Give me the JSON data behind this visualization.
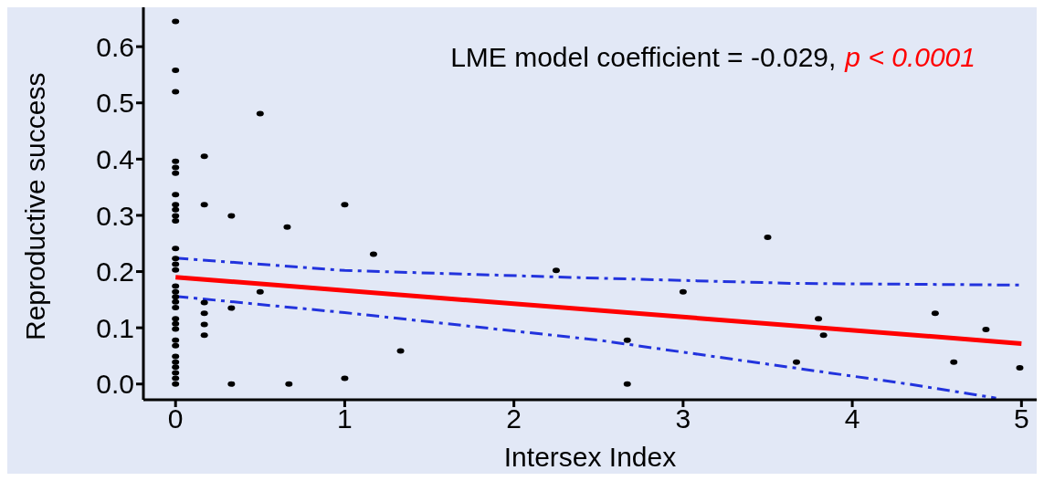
{
  "chart_data": {
    "type": "scatter",
    "xlabel": "Intersex Index",
    "ylabel": "Reproductive success",
    "annotations": [
      "LME model coefficient = -0.029,",
      "p < 0.0001"
    ],
    "xlim": [
      -0.19,
      5.09
    ],
    "xticks": [
      0,
      1,
      2,
      3,
      4,
      5
    ],
    "ylim": [
      -0.028,
      0.67
    ],
    "yticks": [
      {
        "value": 0,
        "label": "0.0"
      },
      {
        "value": 0.1,
        "label": "0.1"
      },
      {
        "value": 0.2,
        "label": "0.2"
      },
      {
        "value": 0.3,
        "label": "0.3"
      },
      {
        "value": 0.4,
        "label": "0.4"
      },
      {
        "value": 0.5,
        "label": "0.5"
      },
      {
        "value": 0.6,
        "label": "0.6"
      }
    ],
    "grid": false,
    "legend": false,
    "series": [
      {
        "color": "#000000",
        "marker": "circle",
        "x": [
          0,
          0,
          0,
          0,
          0,
          0,
          0,
          0,
          0,
          0,
          0,
          0,
          0,
          0,
          0,
          0,
          0,
          0,
          0,
          0,
          0,
          0,
          0,
          0,
          0,
          0,
          0,
          0,
          0,
          0,
          0,
          0.17,
          0.17,
          0.17,
          0.17,
          0.17,
          0.17,
          0.33,
          0.33,
          0.33,
          0.5,
          0.5,
          0.66,
          0.67,
          1,
          1,
          1.17,
          1.33,
          2.25,
          2.67,
          2.67,
          3,
          3.5,
          3.67,
          3.8,
          3.83,
          4.49,
          4.6,
          4.79,
          4.99
        ],
        "values": [
          0.645,
          0.558,
          0.52,
          0.396,
          0.385,
          0.375,
          0.337,
          0.319,
          0.31,
          0.299,
          0.29,
          0.241,
          0.223,
          0.213,
          0.203,
          0.174,
          0.164,
          0.155,
          0.146,
          0.136,
          0.116,
          0.107,
          0.098,
          0.078,
          0.068,
          0.049,
          0.039,
          0.03,
          0.02,
          0.01,
          0,
          0.405,
          0.319,
          0.145,
          0.126,
          0.106,
          0.087,
          0.299,
          0.135,
          0,
          0.481,
          0.164,
          0.279,
          0,
          0.319,
          0.01,
          0.231,
          0.059,
          0.202,
          0.078,
          0,
          0.164,
          0.261,
          0.039,
          0.116,
          0.087,
          0.126,
          0.039,
          0.097,
          0.029
        ]
      },
      {
        "type": "line",
        "color": "#ff0000",
        "line_style": "solid",
        "marker": "none",
        "x": [
          0,
          5
        ],
        "values": [
          0.19,
          0.072
        ]
      },
      {
        "type": "line",
        "color": "#2233dd",
        "line_style": "dashed",
        "marker": "none",
        "x": [
          0,
          1,
          2.41,
          3.65,
          5
        ],
        "values": [
          0.224,
          0.202,
          0.189,
          0.179,
          0.176
        ]
      },
      {
        "type": "line",
        "color": "#2233dd",
        "line_style": "dashed",
        "marker": "none",
        "x": [
          0,
          1,
          2.5,
          4.33,
          4.85
        ],
        "values": [
          0.156,
          0.127,
          0.078,
          0,
          -0.025
        ]
      }
    ]
  }
}
